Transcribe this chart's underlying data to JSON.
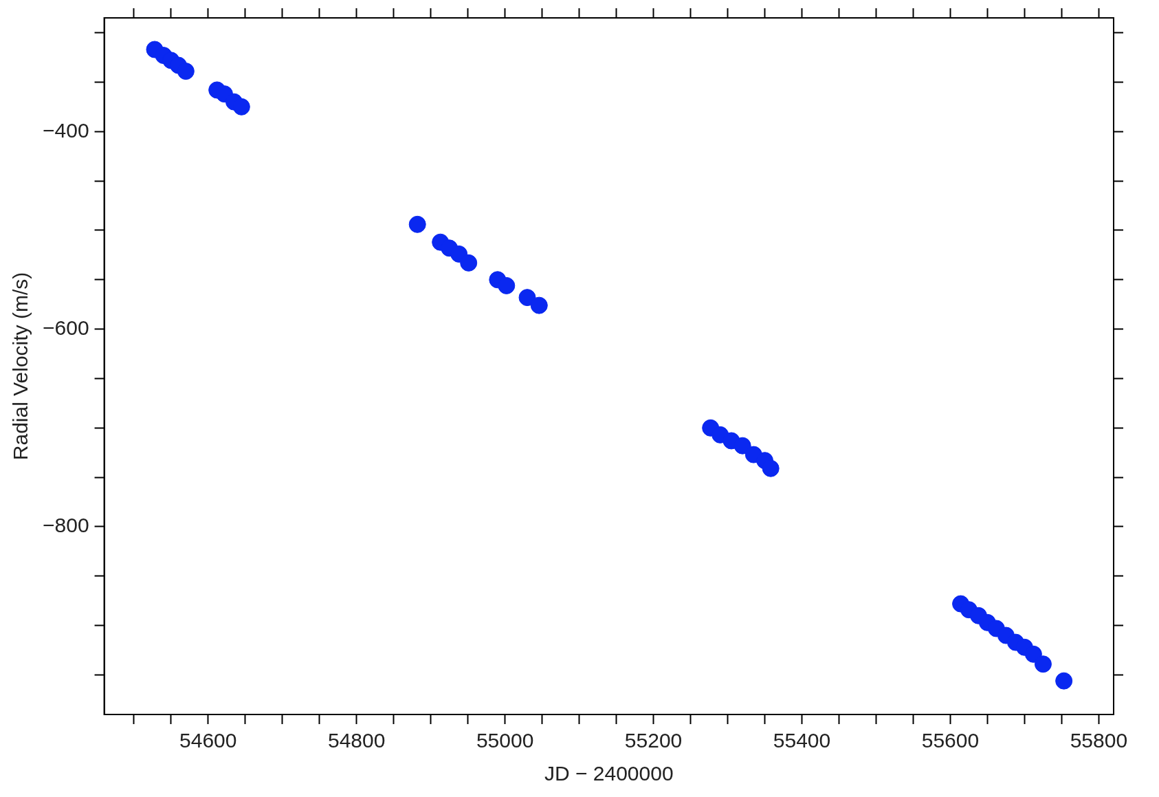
{
  "chart_data": {
    "type": "scatter",
    "xlabel": "JD − 2400000",
    "ylabel": "Radial Velocity (m/s)",
    "marker": "circle",
    "grid": false,
    "xlim": [
      54460,
      55820
    ],
    "xticks": [
      {
        "value": 54500,
        "label": null
      },
      {
        "value": 54550,
        "label": null
      },
      54600,
      {
        "value": 54650,
        "label": null
      },
      {
        "value": 54700,
        "label": null
      },
      {
        "value": 54750,
        "label": null
      },
      54800,
      {
        "value": 54850,
        "label": null
      },
      {
        "value": 54900,
        "label": null
      },
      {
        "value": 54950,
        "label": null
      },
      55000,
      {
        "value": 55050,
        "label": null
      },
      {
        "value": 55100,
        "label": null
      },
      {
        "value": 55150,
        "label": null
      },
      55200,
      {
        "value": 55250,
        "label": null
      },
      {
        "value": 55300,
        "label": null
      },
      {
        "value": 55350,
        "label": null
      },
      55400,
      {
        "value": 55450,
        "label": null
      },
      {
        "value": 55500,
        "label": null
      },
      {
        "value": 55550,
        "label": null
      },
      55600,
      {
        "value": 55650,
        "label": null
      },
      {
        "value": 55700,
        "label": null
      },
      {
        "value": 55750,
        "label": null
      },
      55800
    ],
    "ylim": [
      -990,
      -285
    ],
    "yticks": [
      {
        "value": -950,
        "label": null
      },
      {
        "value": -900,
        "label": null
      },
      {
        "value": -850,
        "label": null
      },
      {
        "value": -800,
        "label": "−800"
      },
      {
        "value": -750,
        "label": null
      },
      {
        "value": -700,
        "label": null
      },
      {
        "value": -650,
        "label": null
      },
      {
        "value": -600,
        "label": "−600"
      },
      {
        "value": -550,
        "label": null
      },
      {
        "value": -500,
        "label": null
      },
      {
        "value": -450,
        "label": null
      },
      {
        "value": -400,
        "label": "−400"
      },
      {
        "value": -350,
        "label": null
      },
      {
        "value": -300,
        "label": null
      }
    ],
    "series": [
      {
        "color": "#0a28f0",
        "x": [
          54528,
          54540,
          54550,
          54560,
          54570,
          54612,
          54622,
          54635,
          54645,
          54882,
          54913,
          54925,
          54938,
          54951,
          54990,
          55002,
          55030,
          55046,
          55277,
          55290,
          55305,
          55320,
          55335,
          55350,
          55358,
          55614,
          55625,
          55638,
          55650,
          55662,
          55675,
          55688,
          55700,
          55712,
          55725,
          55753
        ],
        "values": [
          -317,
          -323,
          -328,
          -333,
          -339,
          -358,
          -362,
          -370,
          -375,
          -494,
          -512,
          -518,
          -524,
          -533,
          -550,
          -556,
          -568,
          -576,
          -700,
          -707,
          -713,
          -718,
          -727,
          -733,
          -741,
          -878,
          -884,
          -890,
          -897,
          -903,
          -910,
          -917,
          -922,
          -929,
          -939,
          -956
        ]
      }
    ]
  }
}
